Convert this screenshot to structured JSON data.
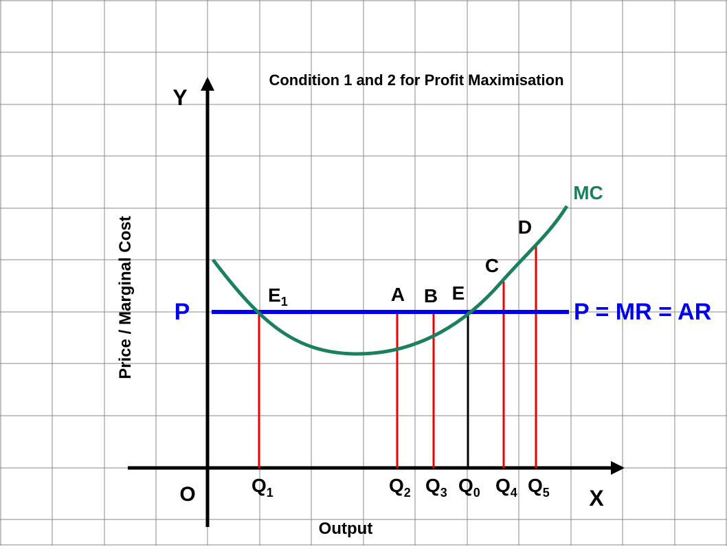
{
  "title": "Condition 1 and 2 for Profit Maximisation",
  "y_axis_label": "Price / Marginal Cost",
  "x_axis_label": "Output",
  "origin_label": "O",
  "y_axis_letter": "Y",
  "x_axis_letter": "X",
  "price_label": "P",
  "price_line_label": "P = MR = AR",
  "mc_label": "MC",
  "points": {
    "e1": {
      "main": "E",
      "sub": "1"
    },
    "a": "A",
    "b": "B",
    "e": "E",
    "c": "C",
    "d": "D"
  },
  "quantities": {
    "q1": {
      "main": "Q",
      "sub": "1"
    },
    "q2": {
      "main": "Q",
      "sub": "2"
    },
    "q3": {
      "main": "Q",
      "sub": "3"
    },
    "q0": {
      "main": "Q",
      "sub": "0"
    },
    "q4": {
      "main": "Q",
      "sub": "4"
    },
    "q5": {
      "main": "Q",
      "sub": "5"
    }
  },
  "colors": {
    "mc_curve": "#1a8060",
    "price_line": "#0000ee",
    "drop_lines": "#ee0000",
    "equilibrium_line": "#000000",
    "grid": "#888888",
    "axes": "#000000"
  }
}
